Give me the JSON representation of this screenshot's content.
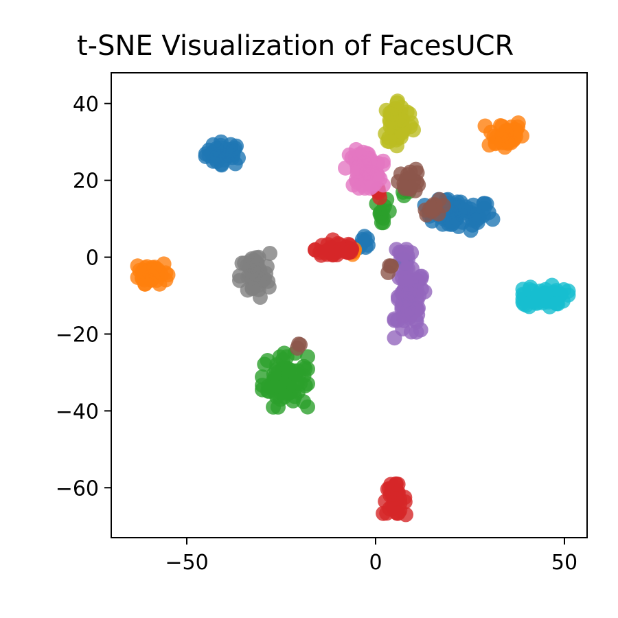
{
  "chart_data": {
    "type": "scatter",
    "title": "t-SNE Visualization of FacesUCR",
    "xlabel": "",
    "ylabel": "",
    "xlim": [
      -70,
      56
    ],
    "ylim": [
      -73,
      48
    ],
    "xticks": [
      -50,
      0,
      50
    ],
    "yticks": [
      40,
      20,
      0,
      -20,
      -40,
      -60
    ],
    "xtick_labels": [
      "−50",
      "0",
      "50"
    ],
    "ytick_labels": [
      "40",
      "20",
      "0",
      "−20",
      "−40",
      "−60"
    ],
    "grid": false,
    "legend": "none",
    "marker_opacity": 0.8,
    "series": [
      {
        "color": "#1f77b4",
        "clusters": [
          {
            "cx": -40,
            "cy": 27,
            "rx": 5,
            "ry": 3,
            "n": 40
          },
          {
            "cx": 22,
            "cy": 11,
            "rx": 9,
            "ry": 4,
            "n": 60
          },
          {
            "cx": -3,
            "cy": 4,
            "rx": 1.5,
            "ry": 2,
            "n": 8
          },
          {
            "cx": 8,
            "cy": -1,
            "rx": 1,
            "ry": 1,
            "n": 4
          }
        ]
      },
      {
        "color": "#ff7f0e",
        "clusters": [
          {
            "cx": 34,
            "cy": 32,
            "rx": 5,
            "ry": 4,
            "n": 40
          },
          {
            "cx": -59,
            "cy": -4,
            "rx": 4,
            "ry": 3,
            "n": 40
          },
          {
            "cx": -6,
            "cy": 1,
            "rx": 1,
            "ry": 1,
            "n": 4
          }
        ]
      },
      {
        "color": "#2ca02c",
        "clusters": [
          {
            "cx": -24,
            "cy": -32,
            "rx": 6,
            "ry": 7,
            "n": 80
          },
          {
            "cx": 2,
            "cy": 12,
            "rx": 2,
            "ry": 3,
            "n": 12
          },
          {
            "cx": 8,
            "cy": 17,
            "rx": 1,
            "ry": 1,
            "n": 4
          }
        ]
      },
      {
        "color": "#d62728",
        "clusters": [
          {
            "cx": 5,
            "cy": -63,
            "rx": 3,
            "ry": 4,
            "n": 40
          },
          {
            "cx": -10,
            "cy": 2,
            "rx": 6,
            "ry": 2.5,
            "n": 40
          },
          {
            "cx": 1,
            "cy": 17,
            "rx": 1.5,
            "ry": 2,
            "n": 6
          }
        ]
      },
      {
        "color": "#9467bd",
        "clusters": [
          {
            "cx": 9,
            "cy": -12,
            "rx": 4,
            "ry": 9,
            "n": 80
          },
          {
            "cx": 8,
            "cy": 1,
            "rx": 2.5,
            "ry": 2,
            "n": 10
          }
        ]
      },
      {
        "color": "#8c564b",
        "clusters": [
          {
            "cx": 9,
            "cy": 20,
            "rx": 3,
            "ry": 3,
            "n": 20
          },
          {
            "cx": 16,
            "cy": 13,
            "rx": 3,
            "ry": 2,
            "n": 12
          },
          {
            "cx": 4,
            "cy": -3,
            "rx": 1,
            "ry": 1,
            "n": 4
          },
          {
            "cx": -20,
            "cy": -23,
            "rx": 1,
            "ry": 1,
            "n": 3
          }
        ]
      },
      {
        "color": "#e377c2",
        "clusters": [
          {
            "cx": -3,
            "cy": 23,
            "rx": 5,
            "ry": 5,
            "n": 60
          }
        ]
      },
      {
        "color": "#7f7f7f",
        "clusters": [
          {
            "cx": -32,
            "cy": -5,
            "rx": 4,
            "ry": 6,
            "n": 50
          }
        ]
      },
      {
        "color": "#bcbd22",
        "clusters": [
          {
            "cx": 6,
            "cy": 35,
            "rx": 4,
            "ry": 6,
            "n": 60
          }
        ]
      },
      {
        "color": "#17becf",
        "clusters": [
          {
            "cx": 45,
            "cy": -10,
            "rx": 6,
            "ry": 3,
            "n": 50
          }
        ]
      }
    ]
  }
}
